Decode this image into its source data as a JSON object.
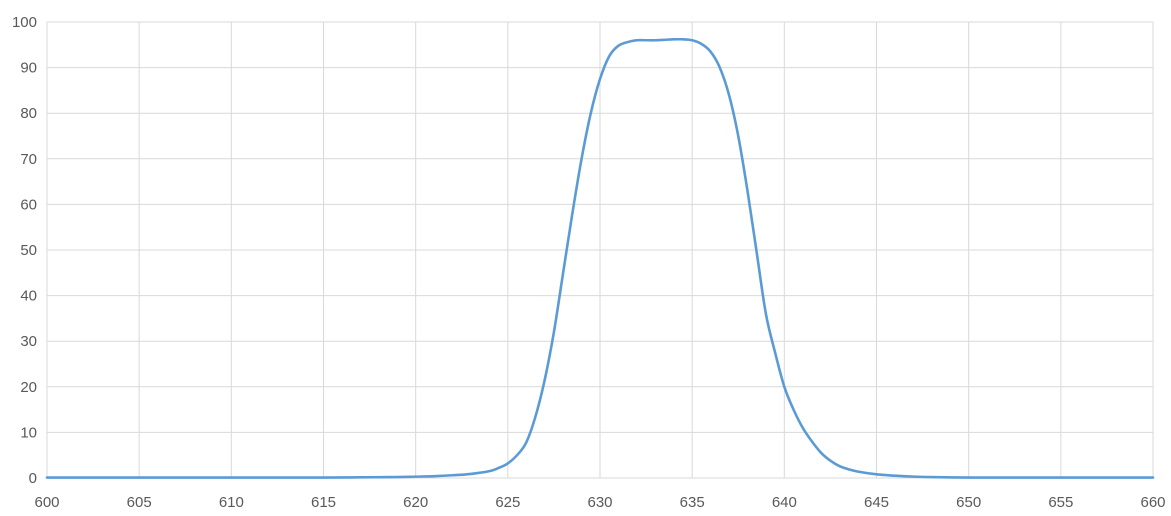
{
  "chart_data": {
    "type": "line",
    "title": "",
    "xlabel": "",
    "ylabel": "",
    "xlim": [
      600,
      660
    ],
    "ylim": [
      0,
      100
    ],
    "x_ticks": [
      600,
      605,
      610,
      615,
      620,
      625,
      630,
      635,
      640,
      645,
      650,
      655,
      660
    ],
    "y_ticks": [
      0,
      10,
      20,
      30,
      40,
      50,
      60,
      70,
      80,
      90,
      100
    ],
    "x_tick_labels": [
      "600",
      "605",
      "610",
      "615",
      "620",
      "625",
      "630",
      "635",
      "640",
      "645",
      "650",
      "655",
      "660"
    ],
    "y_tick_labels": [
      "0",
      "10",
      "20",
      "30",
      "40",
      "50",
      "60",
      "70",
      "80",
      "90",
      "100"
    ],
    "grid": true,
    "legend": "none",
    "colors": {
      "series": "#5b9bd5",
      "grid": "#d9d9d9",
      "tick_text": "#595959"
    },
    "series": [
      {
        "x": [
          600,
          605,
          610,
          615,
          617,
          619,
          620,
          621,
          622,
          623,
          624,
          624.5,
          625,
          625.5,
          626,
          626.5,
          627,
          627.5,
          628,
          628.5,
          629,
          629.5,
          630,
          630.5,
          631,
          631.5,
          632,
          632.5,
          633,
          633.5,
          634,
          634.5,
          635,
          635.5,
          636,
          636.5,
          637,
          637.5,
          638,
          638.5,
          639,
          639.5,
          640,
          640.5,
          641,
          641.5,
          642,
          642.5,
          643,
          643.5,
          644,
          645,
          646,
          647,
          648,
          650,
          655,
          660
        ],
        "y": [
          0.1,
          0.1,
          0.1,
          0.1,
          0.15,
          0.2,
          0.3,
          0.4,
          0.6,
          0.9,
          1.5,
          2.2,
          3.2,
          5.0,
          7.8,
          13.5,
          21.5,
          32.0,
          45.0,
          58.0,
          70.0,
          80.0,
          87.5,
          92.5,
          94.8,
          95.6,
          96.0,
          96.0,
          96.0,
          96.1,
          96.2,
          96.2,
          96.0,
          95.2,
          93.5,
          90.0,
          84.0,
          75.0,
          63.0,
          49.5,
          36.0,
          27.5,
          20.0,
          15.0,
          11.0,
          8.0,
          5.5,
          3.8,
          2.6,
          1.9,
          1.4,
          0.8,
          0.5,
          0.3,
          0.2,
          0.1,
          0.1,
          0.1
        ]
      }
    ]
  }
}
